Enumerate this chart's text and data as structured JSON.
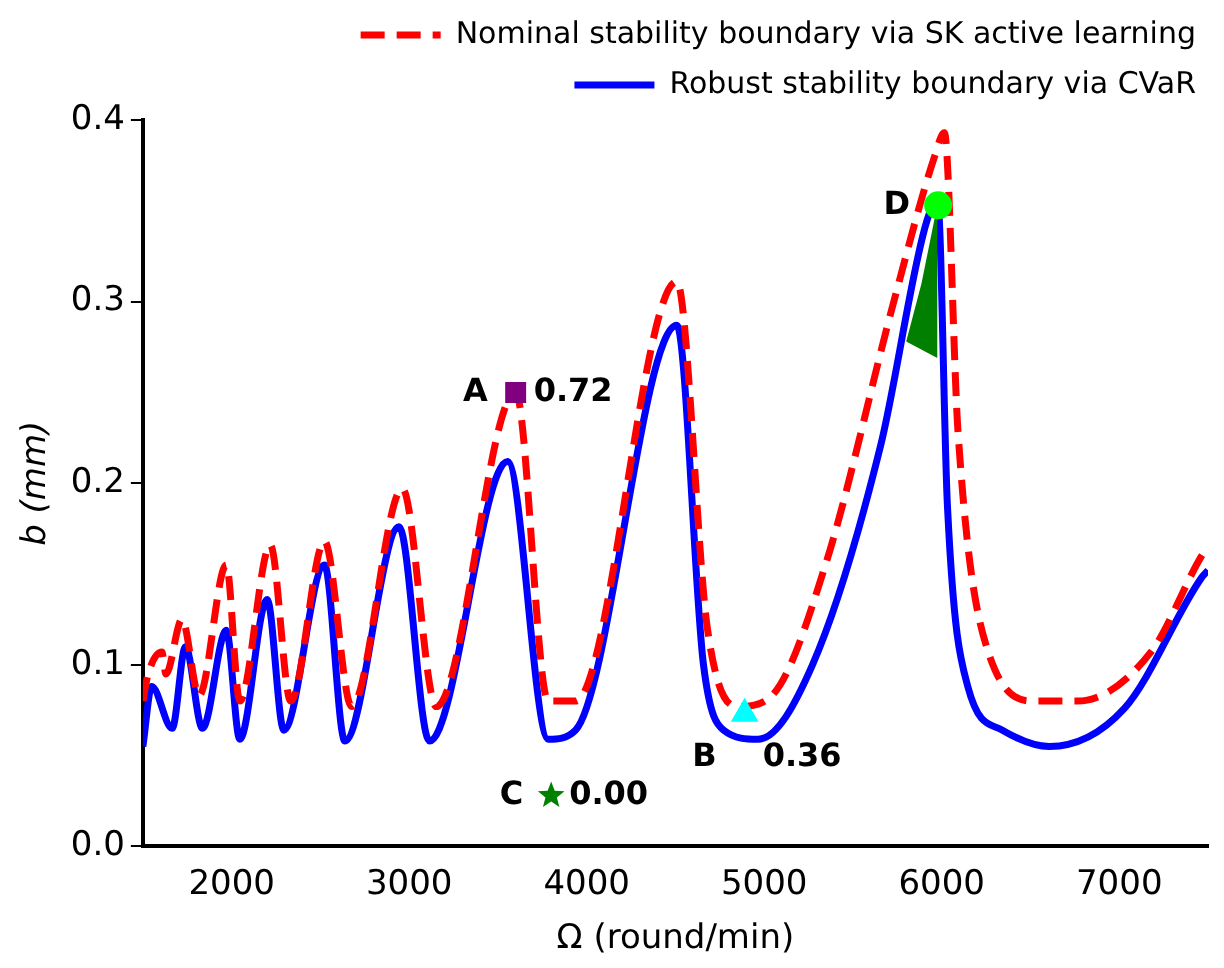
{
  "chart_data": {
    "type": "line",
    "xlabel": "Ω (round/min)",
    "ylabel": "b (mm)",
    "xlim": [
      1500,
      7500
    ],
    "xticks": [
      2000,
      3000,
      4000,
      5000,
      6000,
      7000
    ],
    "ylim": [
      0,
      0.4
    ],
    "yticks": [
      {
        "value": 0,
        "label": "0.0"
      },
      0.1,
      0.2,
      0.3,
      0.4
    ],
    "grid": false,
    "legend": "top",
    "series": [
      {
        "name": "Nominal stability boundary via SK active learning",
        "color": "#ff0000",
        "line_style": "dashed",
        "x": [
          1500,
          1530,
          1607,
          1630,
          1720,
          1817,
          1970,
          2046,
          2218,
          2333,
          2523,
          2676,
          2962,
          3153,
          3600,
          3783,
          3937,
          4508,
          4680,
          4852,
          5043,
          5345,
          5730,
          5960,
          6015,
          6092,
          6262,
          6533,
          6762,
          7178,
          7464,
          7500
        ],
        "values": [
          0.08,
          0.095,
          0.107,
          0.095,
          0.125,
          0.083,
          0.155,
          0.08,
          0.166,
          0.08,
          0.168,
          0.077,
          0.197,
          0.077,
          0.25,
          0.08,
          0.08,
          0.311,
          0.12,
          0.077,
          0.083,
          0.155,
          0.3,
          0.38,
          0.393,
          0.228,
          0.107,
          0.08,
          0.08,
          0.107,
          0.16,
          0.165
        ]
      },
      {
        "name": "Robust stability boundary via CVaR",
        "color": "#0000ff",
        "line_style": "solid",
        "x": [
          1500,
          1550,
          1665,
          1740,
          1836,
          1970,
          2046,
          2200,
          2294,
          2523,
          2638,
          2943,
          3114,
          3555,
          3783,
          3937,
          4508,
          4658,
          4772,
          4966,
          5272,
          5654,
          5918,
          5978,
          6032,
          6147,
          6342,
          6605,
          7029,
          7464,
          7500
        ],
        "values": [
          0.055,
          0.088,
          0.065,
          0.11,
          0.065,
          0.119,
          0.059,
          0.136,
          0.064,
          0.155,
          0.058,
          0.176,
          0.058,
          0.212,
          0.059,
          0.064,
          0.287,
          0.1,
          0.064,
          0.059,
          0.1,
          0.22,
          0.345,
          0.354,
          0.188,
          0.088,
          0.064,
          0.055,
          0.076,
          0.148,
          0.152
        ]
      },
      {
        "type": "area",
        "color": "#007f00",
        "x": [
          5800,
          5886,
          5975,
          5975,
          5800
        ],
        "values": [
          0.278,
          0.31,
          0.353,
          0.269,
          0.278
        ]
      },
      {
        "type": "scatter",
        "color": "#800080",
        "marker": "square",
        "x": [
          3600
        ],
        "values": [
          0.25
        ]
      },
      {
        "type": "scatter",
        "color": "#00ffff",
        "marker": "triangle",
        "x": [
          4890
        ],
        "values": [
          0.073
        ]
      },
      {
        "type": "scatter",
        "color": "#008000",
        "marker": "star",
        "x": [
          3800
        ],
        "values": [
          0.028
        ]
      },
      {
        "type": "scatter",
        "color": "#00ff00",
        "marker": "circle",
        "x": [
          5980
        ],
        "values": [
          0.353
        ]
      }
    ],
    "annotations": [
      {
        "text": "A",
        "x": 3600,
        "y": 0.25
      },
      {
        "text": "0.72",
        "x": 3600,
        "y": 0.25
      },
      {
        "text": "B",
        "x": 4890,
        "y": 0.073
      },
      {
        "text": "0.36",
        "x": 4890,
        "y": 0.073
      },
      {
        "text": "C",
        "x": 3800,
        "y": 0.028
      },
      {
        "text": "0.00",
        "x": 3800,
        "y": 0.028
      },
      {
        "text": "D",
        "x": 5980,
        "y": 0.353
      }
    ]
  }
}
